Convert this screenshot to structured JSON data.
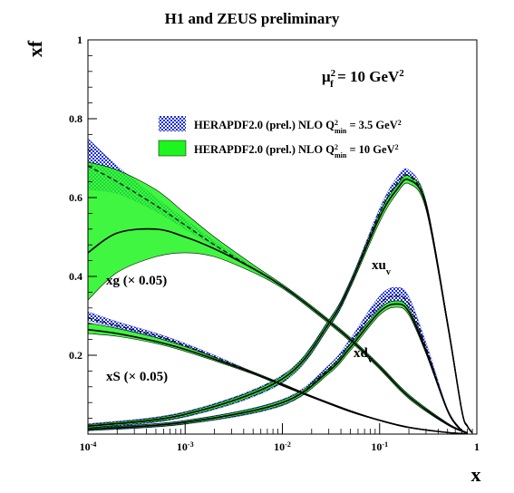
{
  "chart_data": {
    "type": "line",
    "title": "H1 and ZEUS preliminary",
    "xlabel": "x",
    "ylabel": "xf",
    "xscale": "log",
    "xlim": [
      0.0001,
      1
    ],
    "ylim": [
      0,
      1
    ],
    "x_ticks": [
      {
        "value": 0.0001,
        "base": "10",
        "exp": "-4"
      },
      {
        "value": 0.001,
        "base": "10",
        "exp": "-3"
      },
      {
        "value": 0.01,
        "base": "10",
        "exp": "-2"
      },
      {
        "value": 0.1,
        "base": "10",
        "exp": "-1"
      },
      {
        "value": 1,
        "base": "1",
        "exp": ""
      }
    ],
    "y_ticks": [
      {
        "value": 0.2,
        "label": "0.2"
      },
      {
        "value": 0.4,
        "label": "0.4"
      },
      {
        "value": 0.6,
        "label": "0.6"
      },
      {
        "value": 0.8,
        "label": "0.8"
      },
      {
        "value": 1,
        "label": "1"
      }
    ],
    "scale_annotation": {
      "base": "μ",
      "sub": "f",
      "sup": "2",
      "rest": " = 10 GeV",
      "sup2": "2"
    },
    "legend": [
      {
        "style": "hatched",
        "color": "#1a2fd6",
        "text": "HERAPDF2.0 (prel.) NLO Q",
        "sup": "2",
        "sub": "min",
        "tail": " = 3.5 GeV",
        "tail_sup": "2"
      },
      {
        "style": "solid",
        "color": "#1ef51e",
        "text": "HERAPDF2.0 (prel.) NLO Q",
        "sup": "2",
        "sub": "min",
        "tail": " = 10 GeV",
        "tail_sup": "2"
      }
    ],
    "curve_labels": [
      {
        "id": "xg",
        "text": "xg (× 0.05)"
      },
      {
        "id": "xs",
        "text": "xS (× 0.05)"
      },
      {
        "id": "xuv",
        "base": "xu",
        "sub": "v"
      },
      {
        "id": "xdv",
        "base": "xd",
        "sub": "v"
      }
    ],
    "series": [
      {
        "id": "xg",
        "x": [
          0.0001,
          0.0002,
          0.0005,
          0.001,
          0.002,
          0.005,
          0.01,
          0.02,
          0.05,
          0.1,
          0.2,
          0.5,
          0.8
        ],
        "q10_mid": [
          0.46,
          0.51,
          0.52,
          0.5,
          0.47,
          0.42,
          0.375,
          0.32,
          0.24,
          0.17,
          0.095,
          0.025,
          0.003
        ],
        "q10_lo": [
          0.34,
          0.41,
          0.45,
          0.46,
          0.45,
          0.41,
          0.37,
          0.315,
          0.235,
          0.165,
          0.09,
          0.023,
          0.002
        ],
        "q10_hi": [
          0.69,
          0.67,
          0.62,
          0.56,
          0.5,
          0.43,
          0.38,
          0.325,
          0.245,
          0.175,
          0.1,
          0.028,
          0.004
        ],
        "q35_mid": [
          0.68,
          0.64,
          0.58,
          0.53,
          0.48,
          0.42,
          0.375,
          0.32,
          0.24,
          0.17,
          0.095,
          0.025,
          0.003
        ],
        "q35_lo": [
          0.62,
          0.61,
          0.565,
          0.52,
          0.475,
          0.415,
          0.37,
          0.315,
          0.235,
          0.165,
          0.09,
          0.023,
          0.002
        ],
        "q35_hi": [
          0.75,
          0.68,
          0.6,
          0.545,
          0.49,
          0.425,
          0.38,
          0.325,
          0.245,
          0.175,
          0.1,
          0.028,
          0.004
        ]
      },
      {
        "id": "xs",
        "x": [
          0.0001,
          0.0002,
          0.0005,
          0.001,
          0.002,
          0.005,
          0.01,
          0.02,
          0.05,
          0.1,
          0.2,
          0.5,
          0.8
        ],
        "q10_mid": [
          0.265,
          0.255,
          0.235,
          0.215,
          0.19,
          0.155,
          0.125,
          0.095,
          0.058,
          0.035,
          0.017,
          0.004,
          0.001
        ],
        "q10_lo": [
          0.255,
          0.248,
          0.23,
          0.21,
          0.186,
          0.152,
          0.122,
          0.093,
          0.056,
          0.034,
          0.016,
          0.0035,
          0.0008
        ],
        "q10_hi": [
          0.282,
          0.268,
          0.245,
          0.222,
          0.195,
          0.158,
          0.128,
          0.097,
          0.06,
          0.036,
          0.018,
          0.0045,
          0.0012
        ],
        "q35_mid": [
          0.295,
          0.275,
          0.25,
          0.225,
          0.195,
          0.155,
          0.125,
          0.095,
          0.058,
          0.035,
          0.017,
          0.004,
          0.001
        ],
        "q35_lo": [
          0.288,
          0.27,
          0.246,
          0.222,
          0.192,
          0.153,
          0.123,
          0.094,
          0.057,
          0.034,
          0.016,
          0.0035,
          0.0008
        ],
        "q35_hi": [
          0.31,
          0.285,
          0.256,
          0.23,
          0.2,
          0.158,
          0.128,
          0.097,
          0.06,
          0.036,
          0.018,
          0.0045,
          0.0012
        ]
      },
      {
        "id": "xuv",
        "x": [
          0.0001,
          0.001,
          0.01,
          0.03,
          0.05,
          0.1,
          0.15,
          0.2,
          0.3,
          0.5,
          0.7,
          0.8,
          0.9
        ],
        "q10_mid": [
          0.02,
          0.05,
          0.14,
          0.28,
          0.38,
          0.55,
          0.62,
          0.645,
          0.58,
          0.28,
          0.06,
          0.02,
          0.003
        ],
        "q10_lo": [
          0.016,
          0.045,
          0.133,
          0.272,
          0.372,
          0.538,
          0.61,
          0.635,
          0.57,
          0.273,
          0.057,
          0.018,
          0.002
        ],
        "q10_hi": [
          0.024,
          0.055,
          0.147,
          0.288,
          0.388,
          0.562,
          0.63,
          0.655,
          0.59,
          0.287,
          0.063,
          0.022,
          0.004
        ],
        "q35_mid": [
          0.02,
          0.05,
          0.14,
          0.28,
          0.38,
          0.56,
          0.635,
          0.655,
          0.58,
          0.28,
          0.06,
          0.02,
          0.003
        ],
        "q35_lo": [
          0.014,
          0.043,
          0.13,
          0.27,
          0.37,
          0.55,
          0.625,
          0.645,
          0.57,
          0.273,
          0.057,
          0.018,
          0.002
        ],
        "q35_hi": [
          0.026,
          0.057,
          0.15,
          0.29,
          0.39,
          0.572,
          0.65,
          0.67,
          0.59,
          0.287,
          0.063,
          0.022,
          0.004
        ]
      },
      {
        "id": "xdv",
        "x": [
          0.0001,
          0.001,
          0.01,
          0.03,
          0.05,
          0.1,
          0.15,
          0.2,
          0.3,
          0.5,
          0.7
        ],
        "q10_mid": [
          0.012,
          0.03,
          0.08,
          0.16,
          0.22,
          0.31,
          0.33,
          0.31,
          0.21,
          0.06,
          0.008
        ],
        "q10_lo": [
          0.009,
          0.026,
          0.074,
          0.153,
          0.212,
          0.302,
          0.322,
          0.302,
          0.204,
          0.057,
          0.006
        ],
        "q10_hi": [
          0.015,
          0.034,
          0.086,
          0.167,
          0.228,
          0.318,
          0.338,
          0.318,
          0.216,
          0.063,
          0.01
        ],
        "q35_mid": [
          0.012,
          0.03,
          0.08,
          0.165,
          0.23,
          0.33,
          0.35,
          0.33,
          0.22,
          0.06,
          0.008
        ],
        "q35_lo": [
          0.008,
          0.025,
          0.072,
          0.155,
          0.218,
          0.315,
          0.335,
          0.315,
          0.21,
          0.056,
          0.006
        ],
        "q35_hi": [
          0.016,
          0.035,
          0.088,
          0.175,
          0.242,
          0.35,
          0.372,
          0.348,
          0.232,
          0.064,
          0.01
        ]
      }
    ]
  }
}
